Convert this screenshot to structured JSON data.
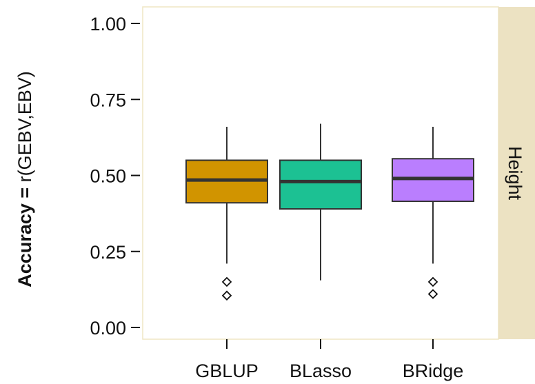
{
  "chart_data": {
    "type": "boxplot",
    "ylabel_bold": "Accuracy =",
    "ylabel_rest": " r(GEBV,EBV)",
    "ylim": [
      0,
      1
    ],
    "yticks": [
      "0.00",
      "0.25",
      "0.50",
      "0.75",
      "1.00"
    ],
    "ytick_values": [
      0,
      0.25,
      0.5,
      0.75,
      1.0
    ],
    "categories": [
      "GBLUP",
      "BLasso",
      "BRidge"
    ],
    "facet_label": "Height",
    "grid": false,
    "series": [
      {
        "category": "GBLUP",
        "color": "#D19400",
        "min": 0.21,
        "q1": 0.41,
        "median": 0.485,
        "q3": 0.55,
        "max": 0.66,
        "outliers": [
          0.15,
          0.105
        ]
      },
      {
        "category": "BLasso",
        "color": "#1CC193",
        "min": 0.155,
        "q1": 0.39,
        "median": 0.48,
        "q3": 0.55,
        "max": 0.67,
        "outliers": []
      },
      {
        "category": "BRidge",
        "color": "#BA7EFE",
        "min": 0.21,
        "q1": 0.415,
        "median": 0.49,
        "q3": 0.555,
        "max": 0.66,
        "outliers": [
          0.15,
          0.11
        ]
      }
    ]
  }
}
